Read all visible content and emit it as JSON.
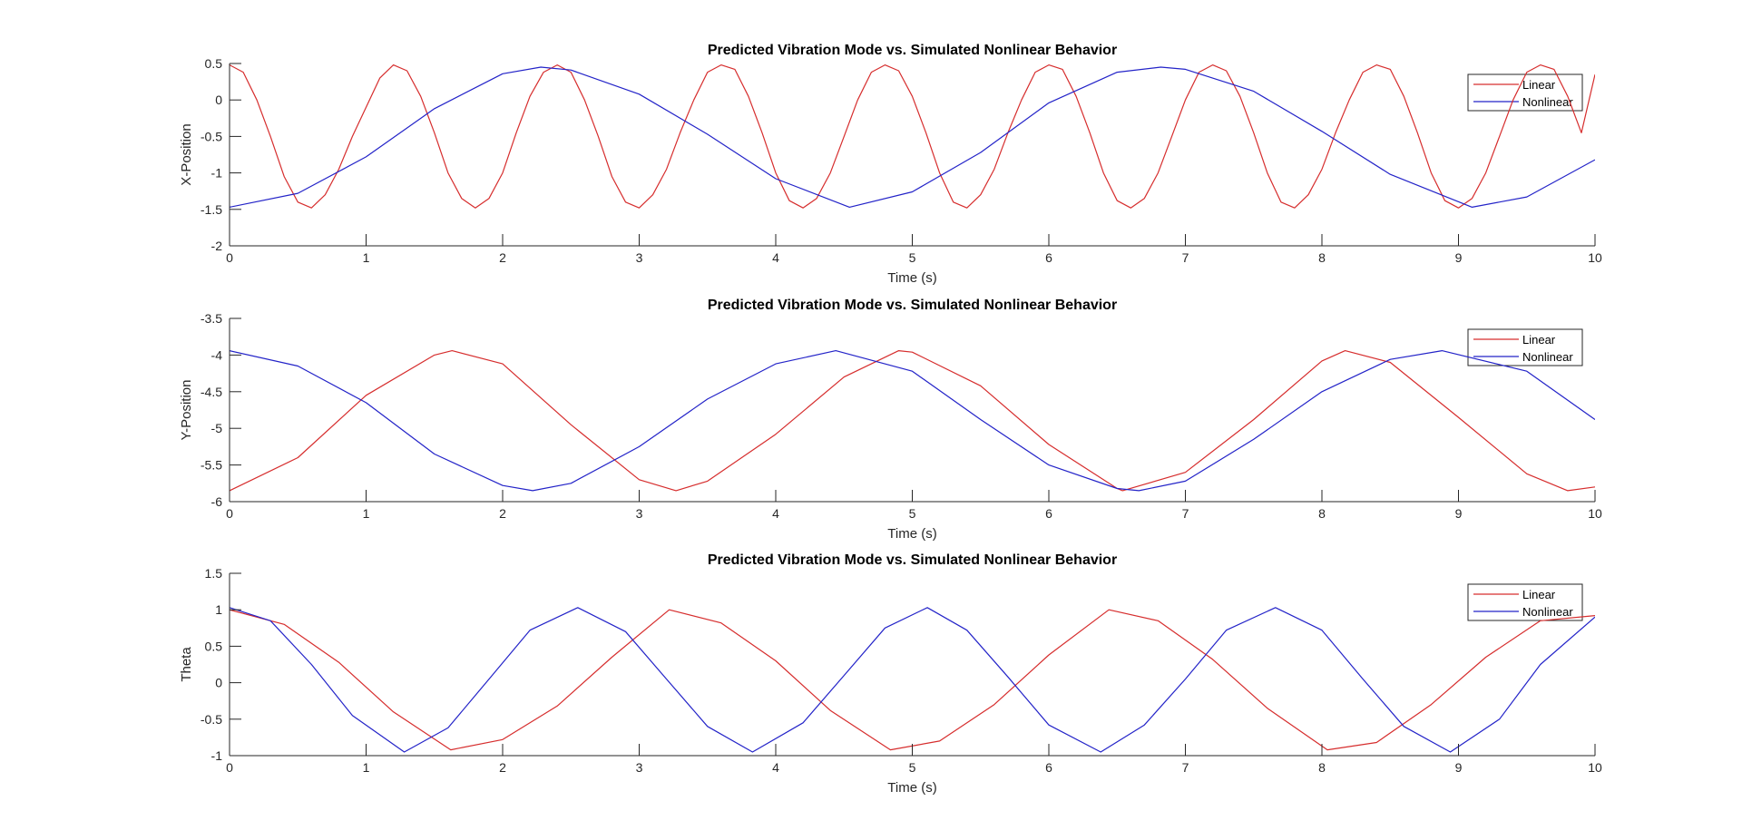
{
  "colors": {
    "linear": "#d62d2d",
    "nonlinear": "#2323c8",
    "axis": "#262626"
  },
  "chart_data": [
    {
      "type": "line",
      "title": "Predicted Vibration Mode vs. Simulated Nonlinear Behavior",
      "xlabel": "Time (s)",
      "ylabel": "X-Position",
      "xlim": [
        0,
        10
      ],
      "ylim": [
        -2,
        0.5
      ],
      "xticks": [
        "0",
        "1",
        "2",
        "3",
        "4",
        "5",
        "6",
        "7",
        "8",
        "9",
        "10"
      ],
      "yticks": [
        "-2",
        "-1.5",
        "-1",
        "-0.5",
        "0",
        "0.5"
      ],
      "legend": {
        "placement": "top-right",
        "entries": [
          "Linear",
          "Nonlinear"
        ]
      },
      "series": [
        {
          "name": "Linear",
          "color": "#d62d2d",
          "x": [
            0,
            0.1,
            0.2,
            0.3,
            0.4,
            0.5,
            0.6,
            0.7,
            0.8,
            0.9,
            1.0,
            1.1,
            1.2,
            1.3,
            1.4,
            1.5,
            1.6,
            1.7,
            1.8,
            1.9,
            2.0,
            2.1,
            2.2,
            2.3,
            2.4,
            2.5,
            2.6,
            2.7,
            2.8,
            2.9,
            3.0,
            3.1,
            3.2,
            3.3,
            3.4,
            3.5,
            3.6,
            3.7,
            3.8,
            3.9,
            4.0,
            4.1,
            4.2,
            4.3,
            4.4,
            4.5,
            4.6,
            4.7,
            4.8,
            4.9,
            5.0,
            5.1,
            5.2,
            5.3,
            5.4,
            5.5,
            5.6,
            5.7,
            5.8,
            5.9,
            6.0,
            6.1,
            6.2,
            6.3,
            6.4,
            6.5,
            6.6,
            6.7,
            6.8,
            6.9,
            7.0,
            7.1,
            7.2,
            7.3,
            7.4,
            7.5,
            7.6,
            7.7,
            7.8,
            7.9,
            8.0,
            8.1,
            8.2,
            8.3,
            8.4,
            8.5,
            8.6,
            8.7,
            8.8,
            8.9,
            9.0,
            9.1,
            9.2,
            9.3,
            9.4,
            9.5,
            9.6,
            9.7,
            9.8,
            9.9,
            10.0
          ],
          "y": [
            0.48,
            0.38,
            0.0,
            -0.5,
            -1.05,
            -1.4,
            -1.48,
            -1.3,
            -0.95,
            -0.5,
            -0.1,
            0.3,
            0.48,
            0.4,
            0.05,
            -0.45,
            -1.0,
            -1.35,
            -1.48,
            -1.35,
            -1.0,
            -0.45,
            0.05,
            0.38,
            0.48,
            0.38,
            0.0,
            -0.5,
            -1.05,
            -1.4,
            -1.48,
            -1.3,
            -0.95,
            -0.45,
            0.0,
            0.38,
            0.48,
            0.42,
            0.05,
            -0.45,
            -1.0,
            -1.38,
            -1.48,
            -1.35,
            -1.0,
            -0.5,
            0.0,
            0.38,
            0.48,
            0.4,
            0.05,
            -0.45,
            -1.0,
            -1.4,
            -1.48,
            -1.3,
            -0.95,
            -0.45,
            0.0,
            0.38,
            0.48,
            0.42,
            0.05,
            -0.45,
            -1.0,
            -1.38,
            -1.48,
            -1.35,
            -1.0,
            -0.5,
            0.0,
            0.38,
            0.48,
            0.4,
            0.05,
            -0.45,
            -1.0,
            -1.4,
            -1.48,
            -1.3,
            -0.95,
            -0.45,
            0.0,
            0.38,
            0.48,
            0.42,
            0.05,
            -0.45,
            -1.0,
            -1.38,
            -1.48,
            -1.35,
            -1.0,
            -0.5,
            0.0,
            0.38,
            0.48,
            0.42,
            0.05,
            -0.45,
            0.35
          ]
        },
        {
          "name": "Nonlinear",
          "color": "#2323c8",
          "x": [
            0,
            0.5,
            1.0,
            1.5,
            2.0,
            2.28,
            2.5,
            3.0,
            3.5,
            4.0,
            4.54,
            5.0,
            5.5,
            6.0,
            6.5,
            6.82,
            7.0,
            7.5,
            8.0,
            8.5,
            9.1,
            9.5,
            10.0
          ],
          "y": [
            -1.47,
            -1.28,
            -0.78,
            -0.12,
            0.36,
            0.45,
            0.41,
            0.08,
            -0.47,
            -1.08,
            -1.47,
            -1.26,
            -0.72,
            -0.04,
            0.38,
            0.45,
            0.42,
            0.12,
            -0.43,
            -1.02,
            -1.47,
            -1.33,
            -0.82
          ]
        }
      ]
    },
    {
      "type": "line",
      "title": "Predicted Vibration Mode vs. Simulated Nonlinear Behavior",
      "xlabel": "Time (s)",
      "ylabel": "Y-Position",
      "xlim": [
        0,
        10
      ],
      "ylim": [
        -6,
        -3.5
      ],
      "xticks": [
        "0",
        "1",
        "2",
        "3",
        "4",
        "5",
        "6",
        "7",
        "8",
        "9",
        "10"
      ],
      "yticks": [
        "-6",
        "-5.5",
        "-5",
        "-4.5",
        "-4",
        "-3.5"
      ],
      "legend": {
        "placement": "top-right",
        "entries": [
          "Linear",
          "Nonlinear"
        ]
      },
      "series": [
        {
          "name": "Linear",
          "color": "#d62d2d",
          "x": [
            0,
            0.5,
            1.0,
            1.5,
            1.63,
            2.0,
            2.5,
            3.0,
            3.27,
            3.5,
            4.0,
            4.5,
            4.9,
            5.0,
            5.5,
            6.0,
            6.5,
            6.54,
            7.0,
            7.5,
            8.0,
            8.17,
            8.5,
            9.0,
            9.5,
            9.8,
            10.0
          ],
          "y": [
            -5.85,
            -5.4,
            -4.55,
            -4.0,
            -3.94,
            -4.12,
            -4.95,
            -5.7,
            -5.85,
            -5.72,
            -5.08,
            -4.3,
            -3.94,
            -3.96,
            -4.42,
            -5.22,
            -5.82,
            -5.85,
            -5.6,
            -4.88,
            -4.08,
            -3.94,
            -4.1,
            -4.85,
            -5.62,
            -5.85,
            -5.8
          ]
        },
        {
          "name": "Nonlinear",
          "color": "#2323c8",
          "x": [
            0,
            0.5,
            1.0,
            1.5,
            2.0,
            2.22,
            2.5,
            3.0,
            3.5,
            4.0,
            4.44,
            5.0,
            5.5,
            6.0,
            6.5,
            6.66,
            7.0,
            7.5,
            8.0,
            8.5,
            8.88,
            9.5,
            10.0
          ],
          "y": [
            -3.94,
            -4.15,
            -4.65,
            -5.35,
            -5.78,
            -5.85,
            -5.75,
            -5.25,
            -4.6,
            -4.12,
            -3.94,
            -4.22,
            -4.88,
            -5.5,
            -5.82,
            -5.85,
            -5.72,
            -5.15,
            -4.5,
            -4.06,
            -3.94,
            -4.22,
            -4.88
          ]
        }
      ]
    },
    {
      "type": "line",
      "title": "Predicted Vibration Mode vs. Simulated Nonlinear Behavior",
      "xlabel": "Time (s)",
      "ylabel": "Theta",
      "xlim": [
        0,
        10
      ],
      "ylim": [
        -1,
        1.5
      ],
      "xticks": [
        "0",
        "1",
        "2",
        "3",
        "4",
        "5",
        "6",
        "7",
        "8",
        "9",
        "10"
      ],
      "yticks": [
        "-1",
        "-0.5",
        "0",
        "0.5",
        "1",
        "1.5"
      ],
      "legend": {
        "placement": "top-right",
        "entries": [
          "Linear",
          "Nonlinear"
        ]
      },
      "series": [
        {
          "name": "Linear",
          "color": "#d62d2d",
          "x": [
            0,
            0.4,
            0.8,
            1.2,
            1.62,
            2.0,
            2.4,
            2.8,
            3.22,
            3.6,
            4.0,
            4.4,
            4.84,
            5.2,
            5.6,
            6.0,
            6.44,
            6.8,
            7.2,
            7.6,
            8.04,
            8.4,
            8.8,
            9.2,
            9.6,
            10.0
          ],
          "y": [
            1.0,
            0.8,
            0.28,
            -0.4,
            -0.92,
            -0.78,
            -0.32,
            0.35,
            1.0,
            0.82,
            0.3,
            -0.38,
            -0.92,
            -0.8,
            -0.3,
            0.38,
            1.0,
            0.85,
            0.32,
            -0.35,
            -0.92,
            -0.82,
            -0.3,
            0.35,
            0.85,
            0.92
          ]
        },
        {
          "name": "Nonlinear",
          "color": "#2323c8",
          "x": [
            0,
            0.3,
            0.6,
            0.9,
            1.28,
            1.6,
            1.9,
            2.2,
            2.55,
            2.9,
            3.2,
            3.5,
            3.83,
            4.2,
            4.5,
            4.8,
            5.11,
            5.4,
            5.7,
            6.0,
            6.38,
            6.7,
            7.0,
            7.3,
            7.66,
            8.0,
            8.3,
            8.6,
            8.94,
            9.3,
            9.6,
            10.0
          ],
          "y": [
            1.03,
            0.85,
            0.25,
            -0.45,
            -0.95,
            -0.62,
            0.05,
            0.72,
            1.03,
            0.7,
            0.05,
            -0.6,
            -0.95,
            -0.55,
            0.1,
            0.75,
            1.03,
            0.72,
            0.08,
            -0.58,
            -0.95,
            -0.58,
            0.05,
            0.72,
            1.03,
            0.72,
            0.05,
            -0.6,
            -0.95,
            -0.5,
            0.25,
            0.9
          ]
        }
      ]
    }
  ]
}
